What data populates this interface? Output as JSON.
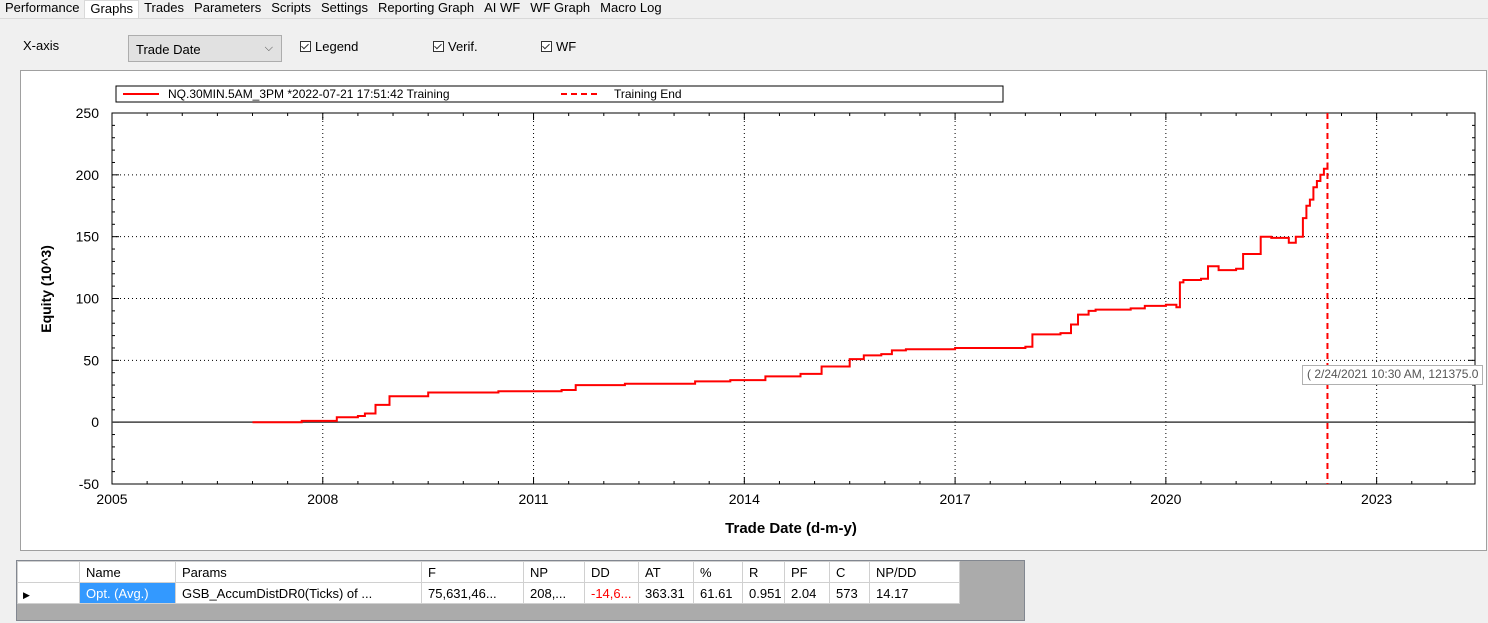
{
  "tabs": [
    "Performance",
    "Graphs",
    "Trades",
    "Parameters",
    "Scripts",
    "Settings",
    "Reporting Graph",
    "AI WF",
    "WF Graph",
    "Macro Log"
  ],
  "active_tab": "Graphs",
  "options": {
    "xaxis_label": "X-axis",
    "xaxis_value": "Trade Date",
    "legend_label": "Legend",
    "verif_label": "Verif.",
    "wf_label": "WF",
    "legend_checked": true,
    "verif_checked": true,
    "wf_checked": true
  },
  "tooltip": "( 2/24/2021 10:30 AM, 121375.0",
  "colors": {
    "series": "#ff0000",
    "grid_selected": "#3399ff"
  },
  "chart_data": {
    "type": "line",
    "legend": [
      "NQ.30MIN.5AM_3PM  *2022-07-21 17:51:42 Training",
      "Training End"
    ],
    "xlabel": "Trade Date (d-m-y)",
    "ylabel": "Equity (10^3)",
    "xlim": [
      2005,
      2024.4
    ],
    "ylim": [
      -50,
      250
    ],
    "x_ticks": [
      "2005",
      "2008",
      "2011",
      "2014",
      "2017",
      "2020",
      "2023"
    ],
    "y_ticks": [
      "250",
      "200",
      "150",
      "100",
      "50",
      "0",
      "-50"
    ],
    "training_end_x": 2022.3,
    "series": [
      {
        "name": "NQ.30MIN.5AM_3PM  *2022-07-21 17:51:42 Training",
        "x": [
          2007.0,
          2007.3,
          2007.7,
          2008.2,
          2008.5,
          2008.6,
          2008.75,
          2008.95,
          2009.5,
          2010.5,
          2011.4,
          2011.6,
          2012.3,
          2013.3,
          2013.8,
          2014.1,
          2014.3,
          2014.8,
          2015.1,
          2015.5,
          2015.7,
          2015.95,
          2016.1,
          2016.3,
          2017.0,
          2018.0,
          2018.1,
          2018.5,
          2018.65,
          2018.75,
          2018.9,
          2019.0,
          2019.5,
          2019.7,
          2020.0,
          2020.15,
          2020.2,
          2020.25,
          2020.5,
          2020.6,
          2020.75,
          2021.0,
          2021.1,
          2021.35,
          2021.5,
          2021.75,
          2021.85,
          2021.95,
          2022.0,
          2022.05,
          2022.1,
          2022.15,
          2022.2,
          2022.25,
          2022.3
        ],
        "y": [
          0,
          0,
          1,
          4,
          5,
          7,
          14,
          21,
          24,
          25,
          26,
          30,
          31,
          33,
          34,
          34,
          37,
          39,
          45,
          51,
          54,
          55,
          58,
          59,
          60,
          61,
          71,
          72,
          79,
          87,
          90,
          91,
          92,
          94,
          95,
          93,
          113,
          115,
          116,
          126,
          123,
          124,
          136,
          150,
          149,
          145,
          150,
          165,
          175,
          180,
          190,
          195,
          200,
          205,
          210
        ]
      }
    ]
  },
  "grid": {
    "headers": [
      "Name",
      "Params",
      "F",
      "NP",
      "DD",
      "AT",
      "%",
      "R",
      "PF",
      "C",
      "NP/DD"
    ],
    "rows": [
      [
        "Opt. (Avg.)",
        "GSB_AccumDistDR0(Ticks) of ...",
        "75,631,46...",
        "208,...",
        "-14,6...",
        "363.31",
        "61.61",
        "0.951",
        "2.04",
        "573",
        "14.17"
      ]
    ]
  }
}
